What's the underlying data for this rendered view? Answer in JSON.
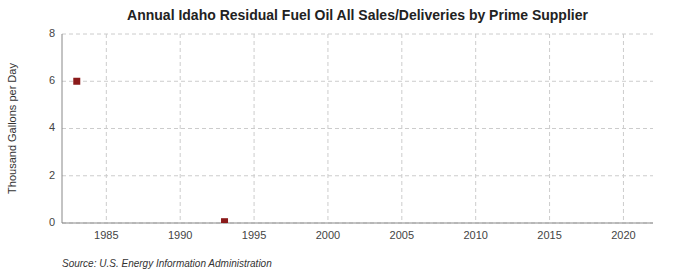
{
  "chart_data": {
    "type": "scatter",
    "title": "Annual Idaho Residual Fuel Oil All Sales/Deliveries by Prime Supplier",
    "ylabel": "Thousand Gallons per Day",
    "annotations": [
      "Source: U.S. Energy Information Administration"
    ],
    "x": [
      1983,
      1993
    ],
    "values": [
      6.0,
      0.055
    ],
    "color": "#8b1a1a",
    "marker": "square",
    "xlim": [
      1982,
      2022
    ],
    "ylim": [
      0,
      8
    ],
    "xticks": [
      1985,
      1990,
      1995,
      2000,
      2005,
      2010,
      2015,
      2020
    ],
    "yticks": [
      0,
      2,
      4,
      6,
      8
    ],
    "grid": true
  }
}
